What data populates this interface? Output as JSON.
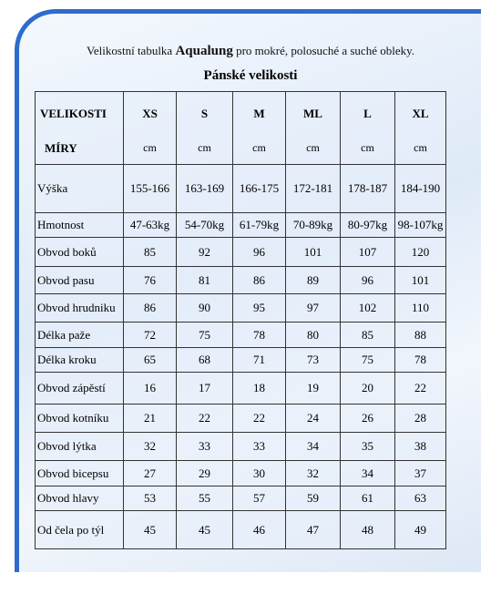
{
  "header": {
    "title_prefix": "Velikostní tabulka",
    "title_brand": "Aqualung",
    "title_suffix": "pro mokré, polosuché a suché obleky.",
    "subtitle": "Pánské velikosti"
  },
  "table": {
    "header": [
      "VELIKOSTI",
      "XS",
      "S",
      "M",
      "ML",
      "L",
      "XL"
    ],
    "units": [
      "MÍRY",
      "cm",
      "cm",
      "cm",
      "cm",
      "cm",
      "cm"
    ],
    "rows": [
      [
        "Výška",
        "155-166",
        "163-169",
        "166-175",
        "172-181",
        "178-187",
        "184-190"
      ],
      [
        "Hmotnost",
        "47-63kg",
        "54-70kg",
        "61-79kg",
        "70-89kg",
        "80-97kg",
        "98-107kg"
      ],
      [
        "Obvod boků",
        85,
        92,
        96,
        101,
        107,
        120
      ],
      [
        "Obvod pasu",
        76,
        81,
        86,
        89,
        96,
        101
      ],
      [
        "Obvod hrudniku",
        86,
        90,
        95,
        97,
        102,
        110
      ],
      [
        "Délka paže",
        72,
        75,
        78,
        80,
        85,
        88
      ],
      [
        "Délka kroku",
        65,
        68,
        71,
        73,
        75,
        78
      ],
      [
        "Obvod zápěstí",
        16,
        17,
        18,
        19,
        20,
        22
      ],
      [
        "Obvod kotníku",
        21,
        22,
        22,
        24,
        26,
        28
      ],
      [
        "Obvod lýtka",
        32,
        33,
        33,
        34,
        35,
        38
      ],
      [
        "Obvod bicepsu",
        27,
        29,
        30,
        32,
        34,
        37
      ],
      [
        "Obvod hlavy",
        53,
        55,
        57,
        59,
        61,
        63
      ],
      [
        "Od čela po týl",
        45,
        45,
        46,
        47,
        48,
        49
      ]
    ]
  }
}
